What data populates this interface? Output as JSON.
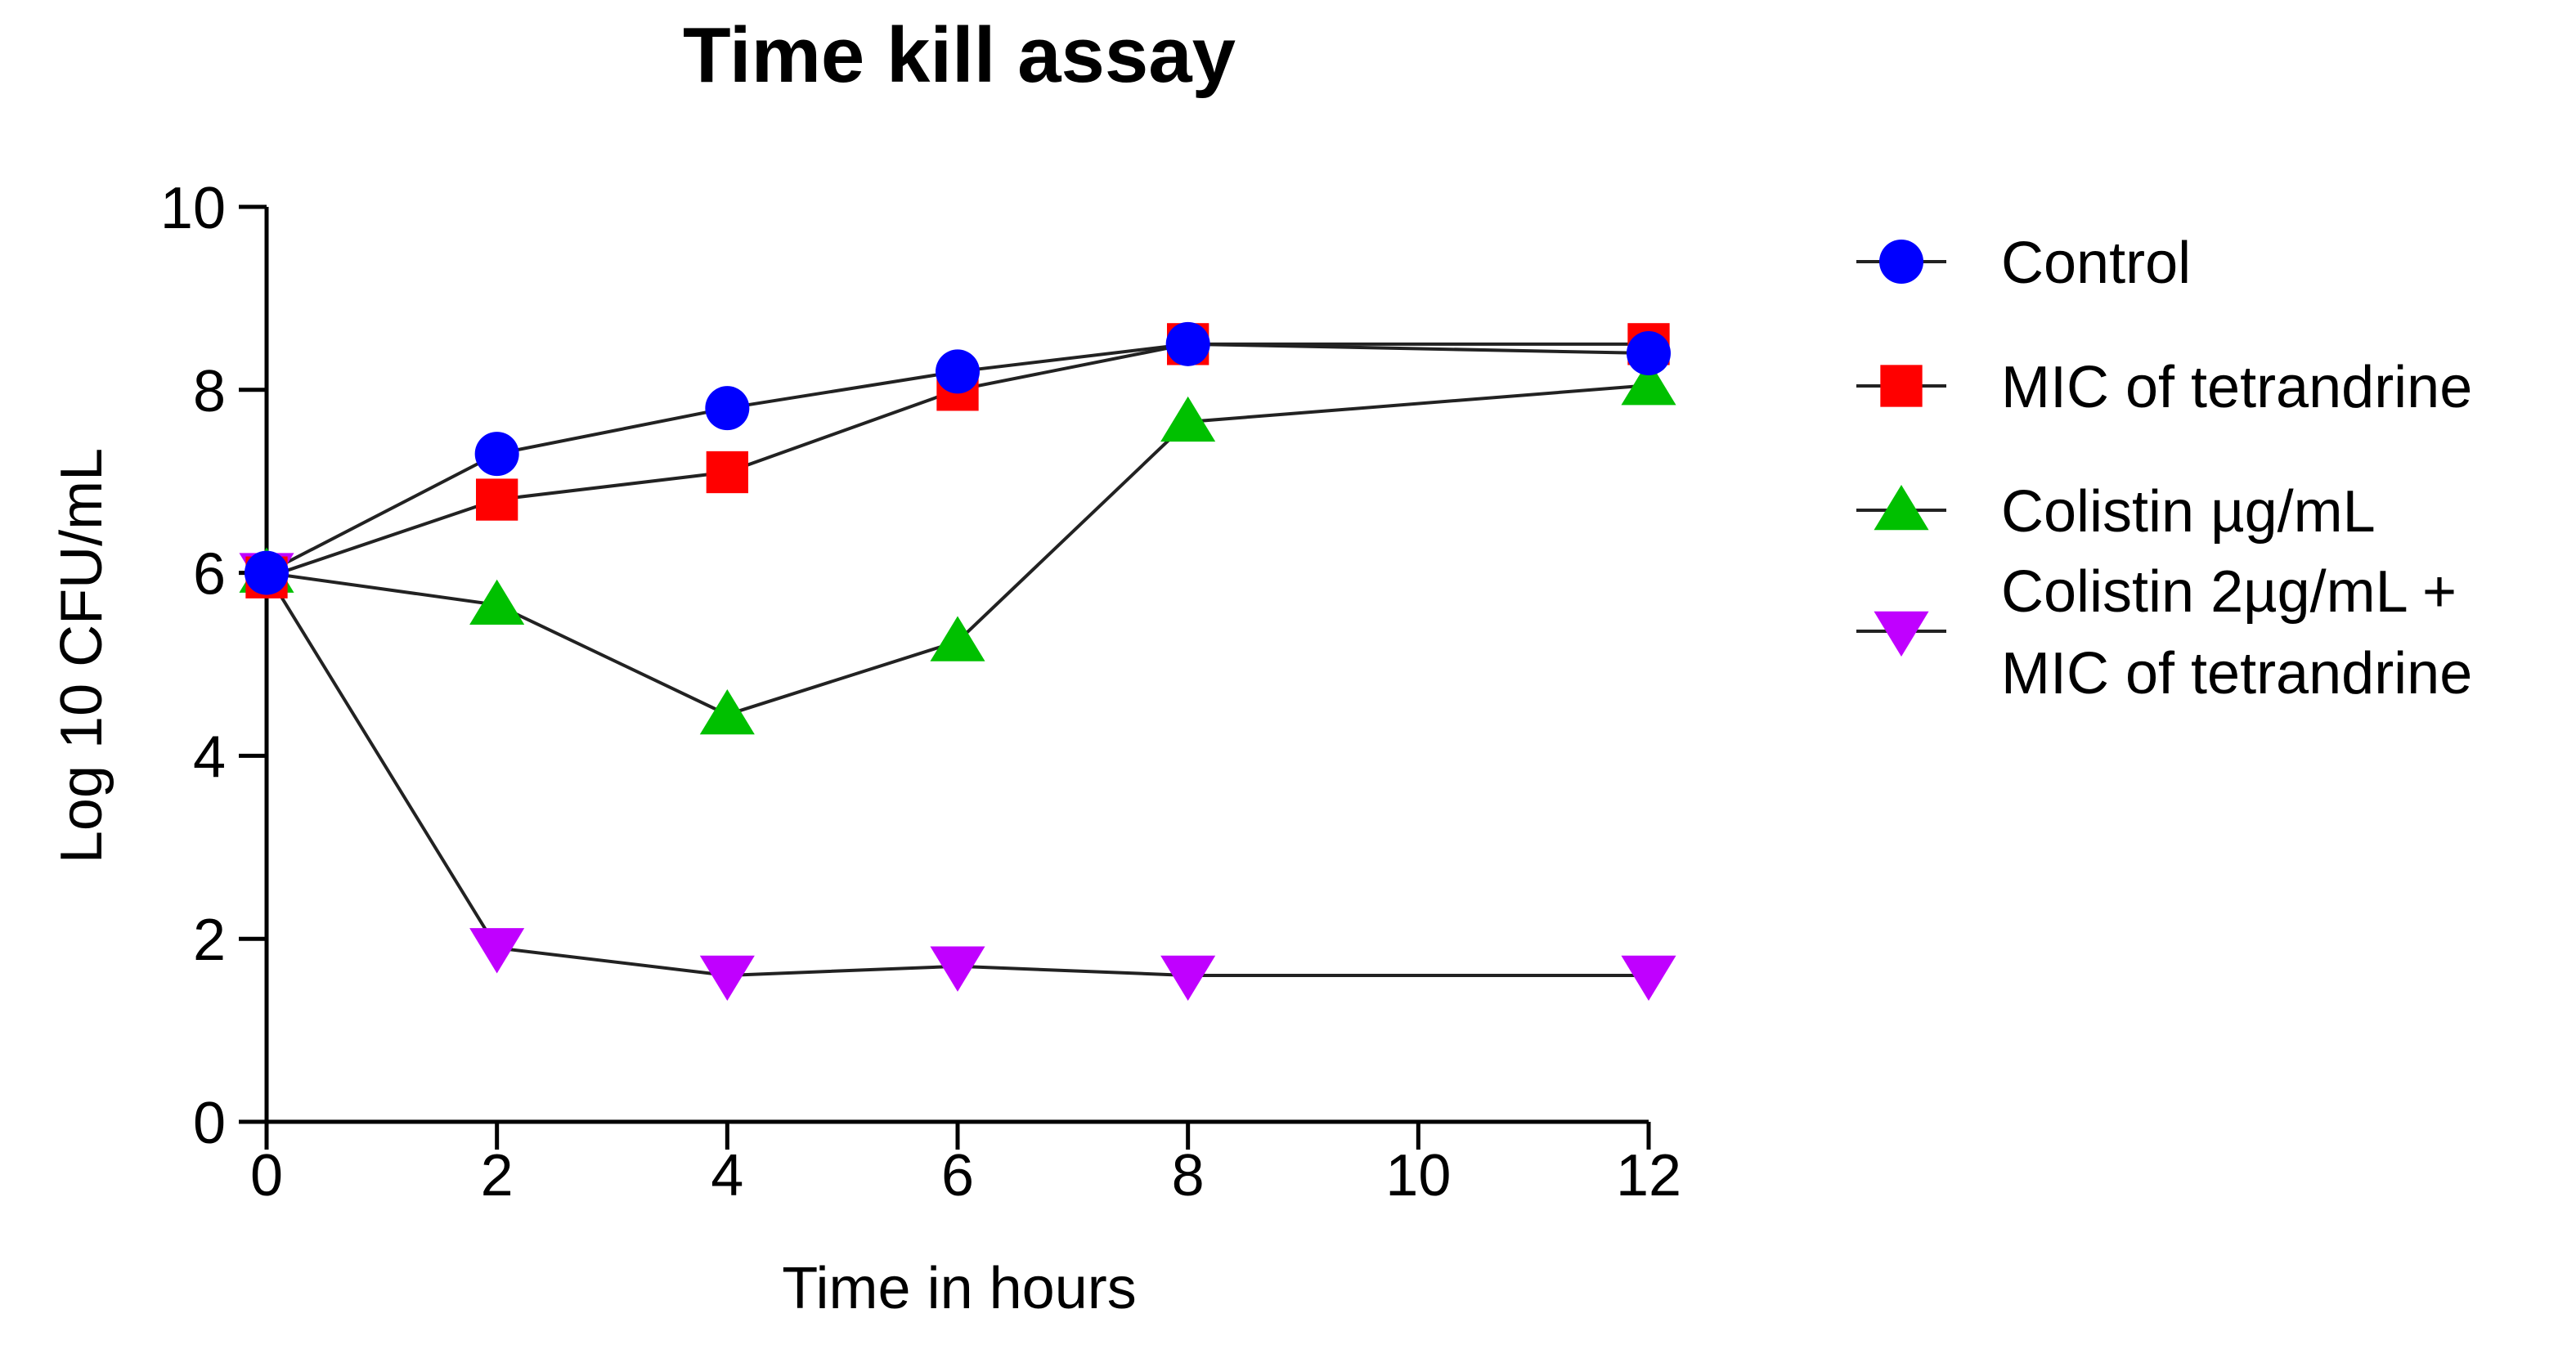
{
  "chart_data": {
    "type": "line",
    "title": "Time kill assay",
    "xlabel": "Time in hours",
    "ylabel": "Log 10 CFU/mL",
    "x": [
      0,
      2,
      4,
      6,
      8,
      12
    ],
    "xticks": [
      0,
      2,
      4,
      6,
      8,
      10,
      12
    ],
    "yticks": [
      0,
      2,
      4,
      6,
      8,
      10
    ],
    "xlim": [
      0,
      12
    ],
    "ylim": [
      0,
      10
    ],
    "grid": false,
    "legend_position": "right",
    "series": [
      {
        "name": "Control",
        "legend_lines": [
          "Control"
        ],
        "marker": "circle",
        "color": "#0000ff",
        "values": [
          6.0,
          7.3,
          7.8,
          8.2,
          8.5,
          8.4
        ]
      },
      {
        "name": "MIC of tetrandrine",
        "legend_lines": [
          "MIC of tetrandrine"
        ],
        "marker": "square",
        "color": "#ff0000",
        "values": [
          5.95,
          6.8,
          7.1,
          8.0,
          8.5,
          8.5
        ]
      },
      {
        "name": "Colistin µg/mL",
        "legend_lines": [
          "Colistin µg/mL"
        ],
        "marker": "triangle-up",
        "color": "#00c000",
        "values": [
          6.0,
          5.65,
          4.45,
          5.25,
          7.65,
          8.05
        ]
      },
      {
        "name": "Colistin 2µg/mL + MIC of tetrandrine",
        "legend_lines": [
          "Colistin 2µg/mL +",
          "MIC of tetrandrine"
        ],
        "marker": "triangle-down",
        "color": "#c000ff",
        "values": [
          6.0,
          1.9,
          1.6,
          1.7,
          1.6,
          1.6
        ]
      }
    ]
  }
}
